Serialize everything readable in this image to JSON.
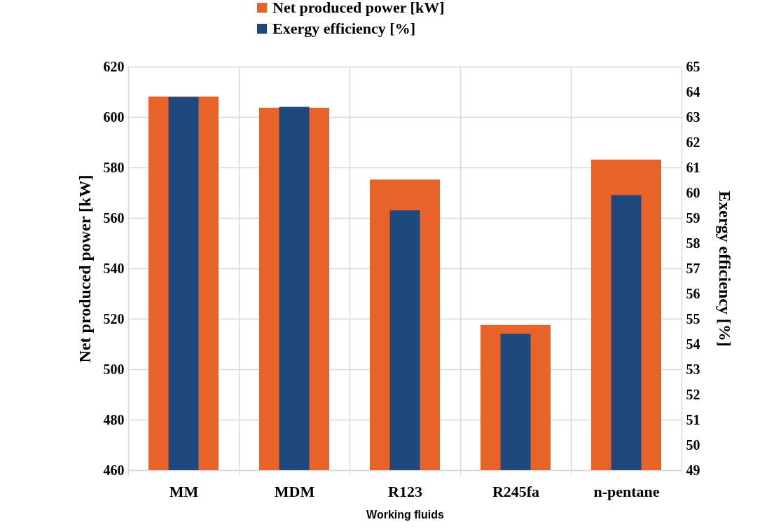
{
  "chart_data": {
    "type": "bar",
    "xlabel": "Working fluids",
    "ylabel": "Net produced power [kW]",
    "y2label": "Exergy efficiency [%]",
    "categories": [
      "MM",
      "MDM",
      "R123",
      "R245fa",
      "n-pentane"
    ],
    "series": [
      {
        "name": "Net produced power [kW]",
        "color": "#e8632a",
        "values": [
          608.1,
          603.7,
          575.2,
          517.6,
          583.1
        ]
      },
      {
        "name": "Exergy efficiency [%]",
        "color": "#1f497d",
        "axis": "y2",
        "values": [
          63.8,
          63.4,
          59.3,
          54.4,
          59.9
        ]
      }
    ],
    "ylim": [
      460,
      620
    ],
    "yticks": [
      460,
      480,
      500,
      520,
      540,
      560,
      580,
      600,
      620
    ],
    "y2lim": [
      49,
      65
    ],
    "y2ticks": [
      49,
      50,
      51,
      52,
      53,
      54,
      55,
      56,
      57,
      58,
      59,
      60,
      61,
      62,
      63,
      64,
      65
    ],
    "grid": true,
    "legend": "top"
  }
}
